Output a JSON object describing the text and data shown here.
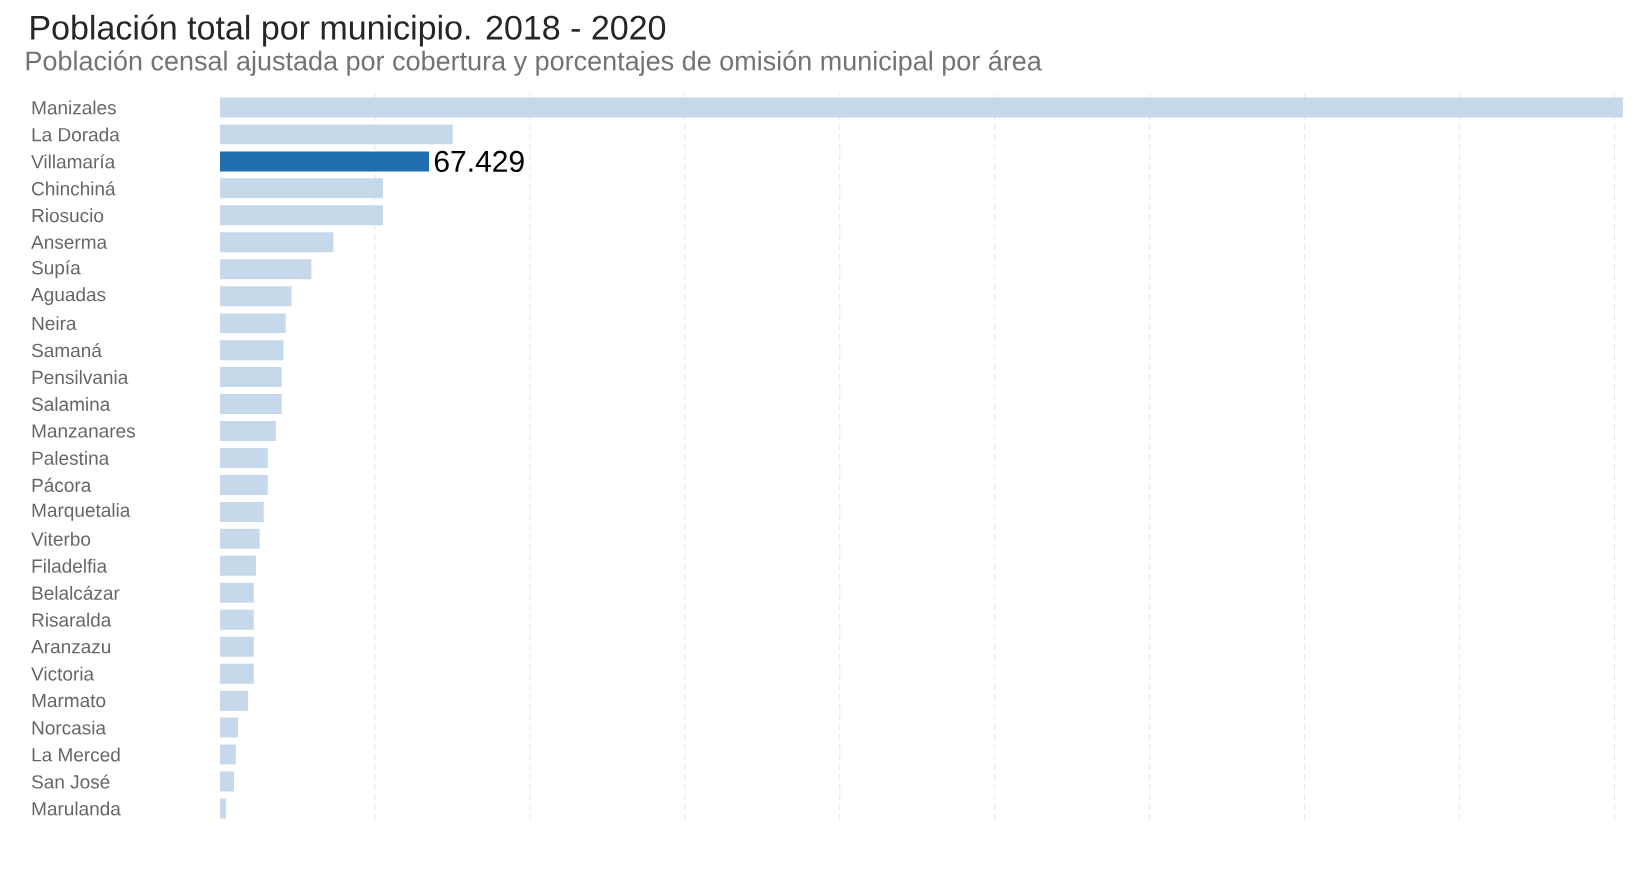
{
  "chart_data": {
    "type": "bar",
    "orientation": "horizontal",
    "title": "Población total por municipio. 2018 - 2020",
    "subtitle": "Población censal ajustada por cobertura y porcentajes de omisión municipal por área",
    "categories": [
      "Manizales",
      "La Dorada",
      "Villamaría",
      "Chinchiná",
      "Riosucio",
      "Anserma",
      "Supía",
      "Aguadas",
      "Neira",
      "Samaná",
      "Pensilvania",
      "Salamina",
      "Manzanares",
      "Palestina",
      "Pácora",
      "Marquetalia",
      "Viterbo",
      "Filadelfia",
      "Belalcázar",
      "Risaralda",
      "Aranzazu",
      "Victoria",
      "Marmato",
      "Norcasia",
      "La Merced",
      "San José",
      "Marulanda"
    ],
    "values": [
      452700,
      75100,
      67429,
      52600,
      52600,
      36600,
      29500,
      23100,
      21200,
      20500,
      19900,
      19900,
      18000,
      15400,
      15400,
      14100,
      12800,
      11600,
      10900,
      10900,
      10900,
      10900,
      9000,
      5800,
      5100,
      4500,
      1900
    ],
    "colors": [
      "#c6d9ea",
      "#c6d9ea",
      "#1f6fb0",
      "#c6d9ea",
      "#c6d9ea",
      "#c6d9ea",
      "#c6d9ea",
      "#c6d9ea",
      "#c6d9ea",
      "#c6d9ea",
      "#c6d9ea",
      "#c6d9ea",
      "#c6d9ea",
      "#c6d9ea",
      "#c6d9ea",
      "#c6d9ea",
      "#c6d9ea",
      "#c6d9ea",
      "#c6d9ea",
      "#c6d9ea",
      "#c6d9ea",
      "#c6d9ea",
      "#c6d9ea",
      "#c6d9ea",
      "#c6d9ea",
      "#c6d9ea",
      "#c6d9ea"
    ],
    "value_labels": [
      null,
      null,
      "67.429",
      null,
      null,
      null,
      null,
      null,
      null,
      null,
      null,
      null,
      null,
      null,
      null,
      null,
      null,
      null,
      null,
      null,
      null,
      null,
      null,
      null,
      null,
      null,
      null
    ],
    "xlim": [
      0,
      455000
    ],
    "xticks": [
      {
        "value": 50000,
        "label": null
      },
      {
        "value": 100000,
        "label": null
      },
      {
        "value": 150000,
        "label": null
      },
      {
        "value": 200000,
        "label": null
      },
      {
        "value": 250000,
        "label": null
      },
      {
        "value": 300000,
        "label": null
      },
      {
        "value": 350000,
        "label": null
      },
      {
        "value": 400000,
        "label": null
      },
      {
        "value": 450000,
        "label": null
      }
    ],
    "grid": "x",
    "tick_labels": "y"
  }
}
